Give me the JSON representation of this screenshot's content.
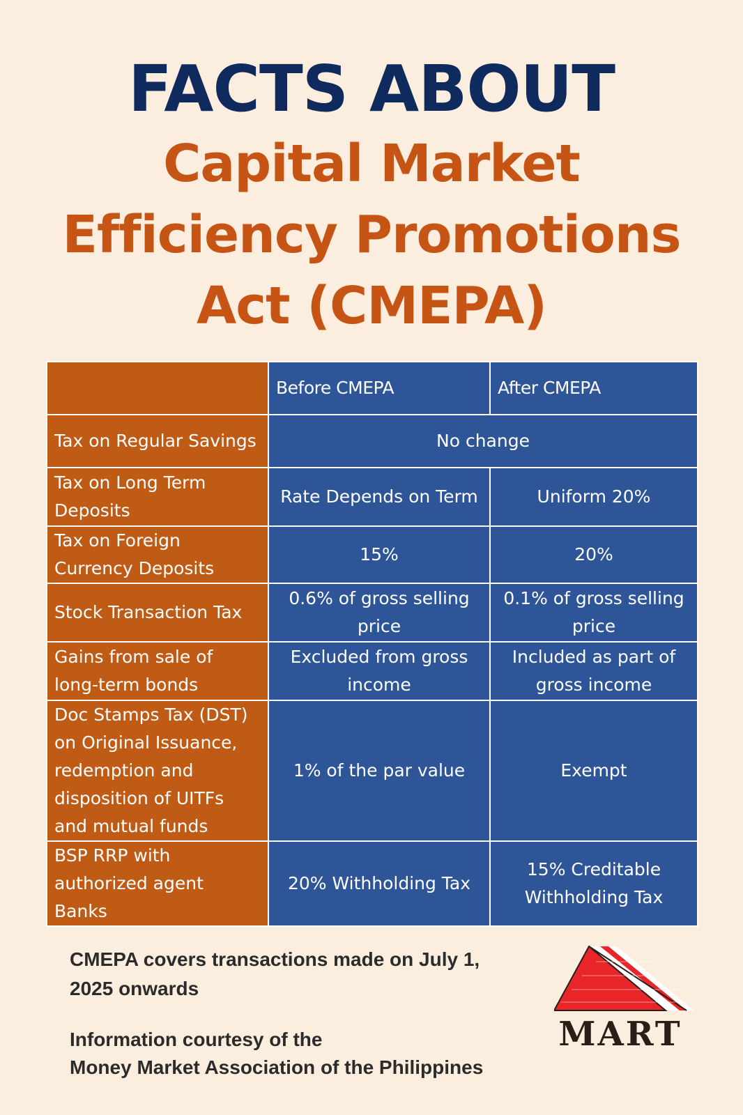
{
  "title": {
    "line1": "FACTS ABOUT",
    "line2": "Capital Market",
    "line3": "Efficiency Promotions",
    "line4": "Act (CMEPA)"
  },
  "table": {
    "headers": [
      "",
      "Before CMEPA",
      "After CMEPA"
    ],
    "rows": [
      {
        "label": "Tax on Regular Savings",
        "before": "No change",
        "after": ""
      },
      {
        "label": "Tax on Long Term Deposits",
        "before": "Rate Depends on Term",
        "after": "Uniform 20%"
      },
      {
        "label": "Tax on Foreign Currency Deposits",
        "before": "15%",
        "after": "20%"
      },
      {
        "label": "Stock Transaction Tax",
        "before": "0.6% of gross selling price",
        "after": "0.1% of gross selling price"
      },
      {
        "label": "Gains from sale of long-term bonds",
        "before": "Excluded from gross income",
        "after": "Included as part of gross income"
      },
      {
        "label": "Doc Stamps Tax (DST) on Original Issuance, redemption and disposition of UITFs and mutual funds",
        "before": "1% of the par value",
        "after": "Exempt"
      },
      {
        "label": "BSP RRP with authorized agent Banks",
        "before": "20% Withholding Tax",
        "after": "15% Creditable Withholding Tax"
      }
    ]
  },
  "footer": {
    "note": "CMEPA covers transactions made on July 1, 2025 onwards",
    "credit_line1": "Information courtesy of the",
    "credit_line2": "Money Market Association of the Philippines"
  },
  "logo": {
    "text": "MART",
    "icon": "mart-pyramid-logo"
  },
  "colors": {
    "background": "#fbeedf",
    "title_navy": "#0f2a5c",
    "title_orange": "#c65515",
    "label_cell": "#c05b16",
    "value_cell": "#2e5597"
  }
}
